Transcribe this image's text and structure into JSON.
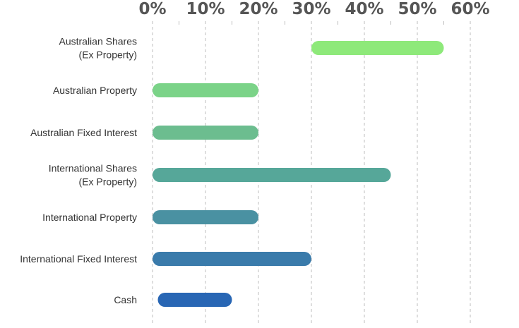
{
  "chart_data": {
    "type": "bar",
    "orientation": "horizontal",
    "style": "floating range bars with rounded ends",
    "title": "",
    "xlabel": "",
    "ylabel": "",
    "xlim": [
      0,
      60
    ],
    "x_ticks": [
      "0%",
      "10%",
      "20%",
      "30%",
      "40%",
      "50%",
      "60%"
    ],
    "x_tick_values": [
      0,
      10,
      20,
      30,
      40,
      50,
      60
    ],
    "x_axis_position": "top",
    "grid": true,
    "grid_style": "dashed vertical",
    "legend": "none",
    "series": [
      {
        "label_lines": [
          "Australian Shares",
          "(Ex Property)"
        ],
        "min": 30,
        "max": 55,
        "color": "#8ee97a"
      },
      {
        "label_lines": [
          "Australian Property"
        ],
        "min": 0,
        "max": 20,
        "color": "#7bd388"
      },
      {
        "label_lines": [
          "Australian Fixed Interest"
        ],
        "min": 0,
        "max": 20,
        "color": "#6cbd8f"
      },
      {
        "label_lines": [
          "International Shares",
          "(Ex Property)"
        ],
        "min": 0,
        "max": 45,
        "color": "#56a799"
      },
      {
        "label_lines": [
          "International Property"
        ],
        "min": 0,
        "max": 20,
        "color": "#4a91a2"
      },
      {
        "label_lines": [
          "International Fixed Interest"
        ],
        "min": 0,
        "max": 30,
        "color": "#3a7bab"
      },
      {
        "label_lines": [
          "Cash"
        ],
        "min": 1,
        "max": 15,
        "color": "#2866b4"
      }
    ]
  }
}
